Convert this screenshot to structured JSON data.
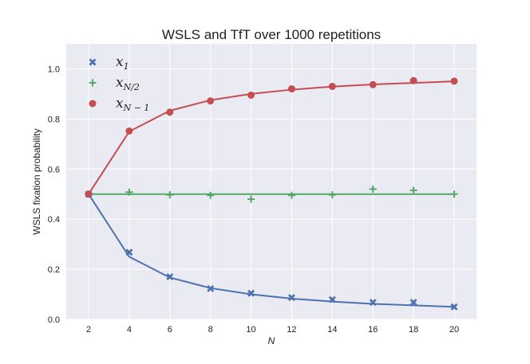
{
  "chart_data": {
    "type": "scatter",
    "title": "WSLS and TfT over 1000 repetitions",
    "xlabel": "N",
    "ylabel": "WSLS fixation probability",
    "xlim": [
      0.9,
      21.1
    ],
    "ylim": [
      0,
      1.1
    ],
    "xticks": [
      2,
      4,
      6,
      8,
      10,
      12,
      14,
      16,
      18,
      20
    ],
    "yticks": [
      0.0,
      0.2,
      0.4,
      0.6,
      0.8,
      1.0
    ],
    "ytick_labels": [
      "0.0",
      "0.2",
      "0.4",
      "0.6",
      "0.8",
      "1.0"
    ],
    "grid": true,
    "legend_position": "top-left",
    "x": [
      2,
      4,
      6,
      8,
      10,
      12,
      14,
      16,
      18,
      20
    ],
    "series": [
      {
        "name": "x",
        "name_sub": "1",
        "marker": "x",
        "color": "#4c72b0",
        "points": [
          0.5,
          0.268,
          0.17,
          0.123,
          0.104,
          0.087,
          0.079,
          0.068,
          0.068,
          0.05
        ],
        "line": [
          0.5,
          0.25,
          0.167,
          0.125,
          0.1,
          0.083,
          0.071,
          0.062,
          0.056,
          0.05
        ]
      },
      {
        "name": "x",
        "name_sub": "N/2",
        "marker": "plus",
        "color": "#55a868",
        "points": [
          0.5,
          0.508,
          0.497,
          0.495,
          0.48,
          0.495,
          0.497,
          0.52,
          0.515,
          0.5
        ],
        "line": [
          0.5,
          0.5,
          0.5,
          0.5,
          0.5,
          0.5,
          0.5,
          0.5,
          0.5,
          0.5
        ]
      },
      {
        "name": "x",
        "name_sub": "N − 1",
        "marker": "circle",
        "color": "#c44e52",
        "points": [
          0.5,
          0.752,
          0.827,
          0.872,
          0.895,
          0.92,
          0.93,
          0.937,
          0.953,
          0.951
        ],
        "line": [
          0.5,
          0.75,
          0.833,
          0.875,
          0.9,
          0.917,
          0.929,
          0.938,
          0.944,
          0.95
        ]
      }
    ]
  }
}
